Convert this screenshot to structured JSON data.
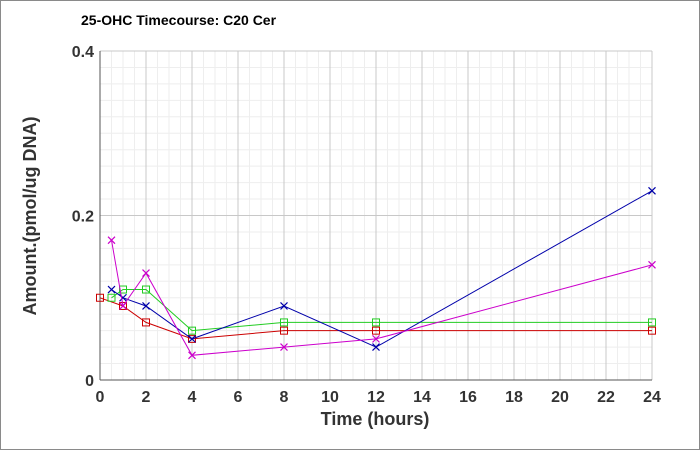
{
  "chart_data": {
    "type": "line",
    "title": "25-OHC Timecourse: C20 Cer",
    "xlabel": "Time (hours)",
    "ylabel": "Amount.(pmol/ug DNA)",
    "xlim": [
      0,
      24
    ],
    "ylim": [
      0,
      0.4
    ],
    "x_ticks": [
      "0",
      "2",
      "4",
      "6",
      "8",
      "10",
      "12",
      "14",
      "16",
      "18",
      "20",
      "22",
      "24"
    ],
    "y_ticks": [
      "0",
      "0.2",
      "0.4"
    ],
    "grid": true,
    "legend": "none",
    "series": [
      {
        "color": "#cc0000",
        "marker": "square",
        "points": [
          [
            0,
            0.1
          ],
          [
            1,
            0.09
          ],
          [
            2,
            0.07
          ],
          [
            4,
            0.05
          ],
          [
            8,
            0.06
          ],
          [
            12,
            0.06
          ],
          [
            24,
            0.06
          ]
        ]
      },
      {
        "color": "#22cc22",
        "marker": "square",
        "points": [
          [
            0.5,
            0.1
          ],
          [
            1,
            0.11
          ],
          [
            2,
            0.11
          ],
          [
            4,
            0.06
          ],
          [
            8,
            0.07
          ],
          [
            12,
            0.07
          ],
          [
            24,
            0.07
          ]
        ]
      },
      {
        "color": "#0000aa",
        "marker": "x",
        "points": [
          [
            0.5,
            0.11
          ],
          [
            1,
            0.1
          ],
          [
            2,
            0.09
          ],
          [
            4,
            0.05
          ],
          [
            8,
            0.09
          ],
          [
            12,
            0.04
          ],
          [
            24,
            0.23
          ]
        ]
      },
      {
        "color": "#cc00cc",
        "marker": "x",
        "points": [
          [
            0.5,
            0.17
          ],
          [
            1,
            0.09
          ],
          [
            2,
            0.13
          ],
          [
            4,
            0.03
          ],
          [
            8,
            0.04
          ],
          [
            12,
            0.05
          ],
          [
            24,
            0.14
          ]
        ]
      }
    ]
  }
}
